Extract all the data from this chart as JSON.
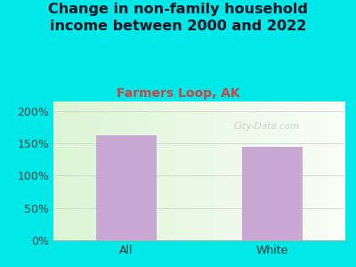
{
  "categories": [
    "All",
    "White"
  ],
  "values": [
    163,
    145
  ],
  "bar_color": "#c9a8d4",
  "title": "Change in non-family household\nincome between 2000 and 2022",
  "subtitle": "Farmers Loop, AK",
  "title_color": "#111122",
  "subtitle_color": "#cc4444",
  "background_color": "#00e8e8",
  "yticks": [
    0,
    50,
    100,
    150,
    200
  ],
  "ytick_labels": [
    "0%",
    "50%",
    "100%",
    "150%",
    "200%"
  ],
  "ylim": [
    0,
    215
  ],
  "watermark": "City-Data.com",
  "title_fontsize": 11.5,
  "subtitle_fontsize": 10,
  "tick_fontsize": 9
}
